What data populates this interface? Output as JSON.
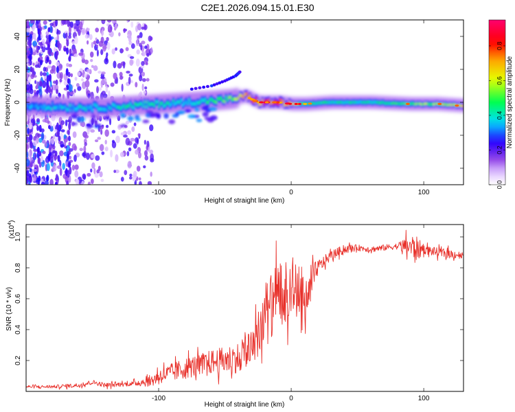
{
  "title": "C2E1.2026.094.15.01.E30",
  "chart_data": [
    {
      "type": "heatmap",
      "title": "C2E1.2026.094.15.01.E30",
      "xlabel": "Height of straight line (km)",
      "ylabel": "Frequency (Hz)",
      "xlim": [
        -200,
        130
      ],
      "ylim": [
        -50,
        50
      ],
      "xticks": [
        -100,
        0,
        100
      ],
      "xtick_labels": [
        "-100",
        "0",
        "100"
      ],
      "yticks": [
        40,
        20,
        0,
        -20,
        -40
      ],
      "ytick_labels": [
        "40",
        "20",
        "0",
        "-20",
        "-40"
      ],
      "grid": false,
      "colorbar": {
        "label": "Normalized spectral amplitude",
        "range": [
          0,
          0.95
        ],
        "ticks": [
          0.8,
          0.6,
          0.4,
          0.2,
          0.0
        ],
        "tick_labels": [
          "0.8",
          "0.6",
          "0.4",
          "0.2",
          "0.0"
        ],
        "colors": [
          "#ff0066",
          "#ff0000",
          "#ffaa00",
          "#ffff00",
          "#00ff00",
          "#00ffff",
          "#0000ff",
          "#8800ff",
          "#ffffff"
        ]
      },
      "ridge": {
        "name": "dominant frequency band",
        "x": [
          -200,
          -170,
          -140,
          -120,
          -100,
          -80,
          -60,
          -45,
          -35,
          -25,
          -10,
          0,
          10,
          30,
          60,
          90,
          110,
          130
        ],
        "y": [
          -2,
          -3,
          -3,
          -2,
          -1,
          0,
          1,
          2,
          4,
          0,
          0,
          -1,
          -1,
          0,
          0,
          -1,
          -1,
          -2
        ],
        "amplitude": [
          0.35,
          0.4,
          0.4,
          0.45,
          0.45,
          0.4,
          0.5,
          0.55,
          0.75,
          0.8,
          0.85,
          0.7,
          0.5,
          0.45,
          0.45,
          0.55,
          0.6,
          0.7
        ]
      },
      "branch": {
        "name": "upper branch",
        "x": [
          -75,
          -60,
          -50,
          -42,
          -38
        ],
        "y": [
          8,
          10,
          13,
          16,
          19
        ]
      }
    },
    {
      "type": "line",
      "xlabel": "Height of straight line (km)",
      "ylabel": "SNR (10 * v/v)",
      "scale_label": "(x10",
      "scale_exponent": "4",
      "xlim": [
        -200,
        130
      ],
      "ylim": [
        0,
        1.08
      ],
      "xticks": [
        -100,
        0,
        100
      ],
      "xtick_labels": [
        "-100",
        "0",
        "100"
      ],
      "yticks": [
        0.2,
        0.4,
        0.6,
        0.8,
        1.0
      ],
      "ytick_labels": [
        "0.2",
        "0.4",
        "0.6",
        "0.8",
        "1.0"
      ],
      "grid": false,
      "series": [
        {
          "name": "SNR",
          "color": "#e8302a",
          "x": [
            -200,
            -180,
            -160,
            -150,
            -140,
            -120,
            -105,
            -100,
            -90,
            -80,
            -70,
            -60,
            -50,
            -40,
            -30,
            -25,
            -20,
            -15,
            -10,
            -5,
            0,
            5,
            10,
            15,
            20,
            30,
            40,
            50,
            60,
            70,
            80,
            90,
            95,
            100,
            110,
            120,
            130
          ],
          "y": [
            0.03,
            0.03,
            0.04,
            0.06,
            0.04,
            0.05,
            0.07,
            0.1,
            0.12,
            0.15,
            0.17,
            0.19,
            0.2,
            0.22,
            0.3,
            0.4,
            0.48,
            0.55,
            0.6,
            0.65,
            0.68,
            0.65,
            0.55,
            0.7,
            0.8,
            0.88,
            0.92,
            0.93,
            0.92,
            0.93,
            0.94,
            0.94,
            0.92,
            0.92,
            0.9,
            0.89,
            0.88
          ],
          "noise": [
            0.01,
            0.01,
            0.015,
            0.015,
            0.015,
            0.015,
            0.04,
            0.05,
            0.06,
            0.07,
            0.07,
            0.08,
            0.09,
            0.1,
            0.15,
            0.18,
            0.2,
            0.22,
            0.22,
            0.2,
            0.2,
            0.22,
            0.22,
            0.12,
            0.05,
            0.03,
            0.03,
            0.02,
            0.02,
            0.02,
            0.02,
            0.08,
            0.08,
            0.03,
            0.03,
            0.03,
            0.02
          ]
        }
      ]
    }
  ]
}
